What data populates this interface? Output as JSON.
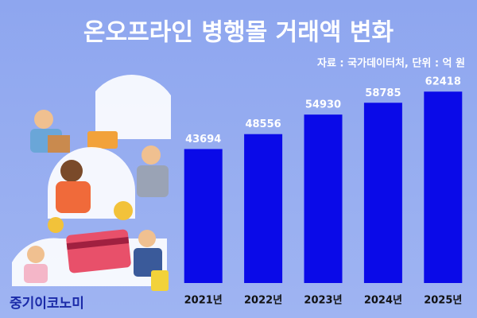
{
  "chart_data": {
    "type": "bar",
    "title": "온오프라인 병행몰 거래액 변화",
    "subtitle": "자료 : 국가데이터처, 단위 : 억 원",
    "brand": "중기이코노미",
    "categories": [
      "2021년",
      "2022년",
      "2023년",
      "2024년",
      "2025년"
    ],
    "values": [
      43694,
      48556,
      54930,
      58785,
      62418
    ],
    "color": "#0a0ae8",
    "ylim": [
      0,
      70000
    ]
  }
}
